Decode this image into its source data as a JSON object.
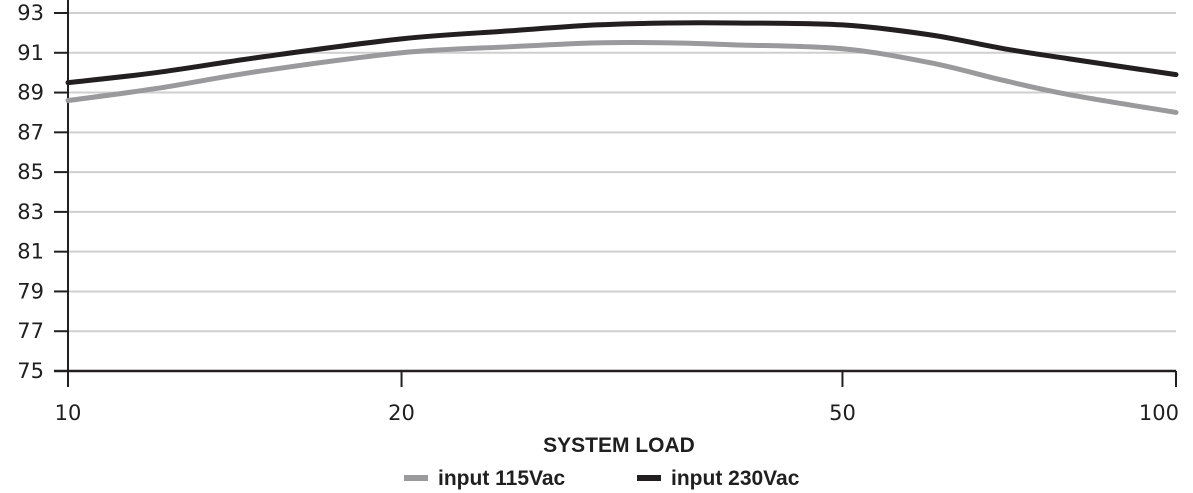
{
  "chart_data": {
    "type": "line",
    "title": "",
    "xlabel": "SYSTEM LOAD",
    "ylabel": "",
    "x_scale": "log",
    "xlim": [
      10,
      100
    ],
    "ylim": [
      75,
      93
    ],
    "x_ticks": [
      "10",
      "20",
      "50",
      "100"
    ],
    "x_tick_values": [
      10,
      20,
      50,
      100
    ],
    "y_ticks": [
      "75",
      "77",
      "79",
      "81",
      "83",
      "85",
      "87",
      "89",
      "91",
      "93"
    ],
    "y_tick_values": [
      75,
      77,
      79,
      81,
      83,
      85,
      87,
      89,
      91,
      93
    ],
    "grid": "horizontal",
    "legend_position": "bottom-center",
    "series": [
      {
        "name": "input 115Vac",
        "color": "#9a9a9c",
        "x": [
          10,
          12,
          15,
          20,
          25,
          30,
          35,
          40,
          50,
          60,
          70,
          80,
          100
        ],
        "y": [
          88.6,
          89.2,
          90.1,
          91.0,
          91.3,
          91.5,
          91.5,
          91.4,
          91.2,
          90.5,
          89.6,
          88.9,
          88.0
        ]
      },
      {
        "name": "input 230Vac",
        "color": "#231f20",
        "x": [
          10,
          12,
          15,
          20,
          25,
          30,
          35,
          40,
          50,
          60,
          70,
          80,
          100
        ],
        "y": [
          89.5,
          90.0,
          90.8,
          91.7,
          92.1,
          92.4,
          92.5,
          92.5,
          92.4,
          91.9,
          91.2,
          90.7,
          89.9
        ]
      }
    ]
  }
}
